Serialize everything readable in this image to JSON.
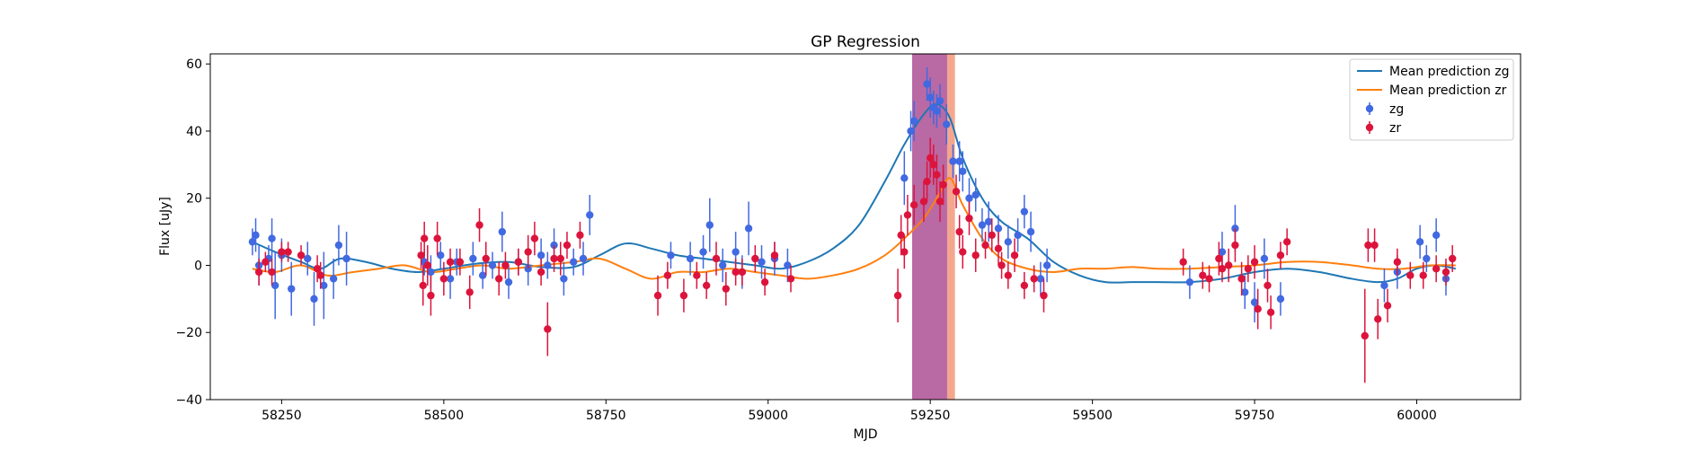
{
  "chart_data": {
    "type": "scatter",
    "title": "GP Regression",
    "xlabel": "MJD",
    "ylabel": "Flux [uJy]",
    "xlim": [
      58140,
      60160
    ],
    "ylim": [
      -40,
      63
    ],
    "xticks": [
      58250,
      58500,
      58750,
      59000,
      59250,
      59500,
      59750,
      60000
    ],
    "yticks": [
      -40,
      -20,
      0,
      20,
      40,
      60
    ],
    "legend_position": "top-right",
    "shaded_regions": [
      {
        "x_start": 59222,
        "x_end": 59276,
        "color": "#9b2a7e",
        "opacity": 0.7
      },
      {
        "x_start": 59276,
        "x_end": 59288,
        "color": "#f08060",
        "opacity": 0.7
      }
    ],
    "series": [
      {
        "name": "Mean prediction zg",
        "kind": "line",
        "color": "#1f77b4",
        "x": [
          58205,
          58240,
          58280,
          58310,
          58340,
          58380,
          58420,
          58460,
          58500,
          58550,
          58600,
          58650,
          58700,
          58740,
          58780,
          58820,
          58860,
          58900,
          58940,
          58980,
          59020,
          59060,
          59100,
          59140,
          59180,
          59210,
          59240,
          59260,
          59280,
          59300,
          59330,
          59360,
          59400,
          59440,
          59480,
          59520,
          59560,
          59600,
          59650,
          59700,
          59750,
          59800,
          59850,
          59900,
          59940,
          59970,
          60000,
          60030,
          60060
        ],
        "y": [
          7,
          4,
          1,
          -1,
          2,
          1,
          -1,
          -2,
          -1,
          0.5,
          1,
          -0.5,
          -0.5,
          3,
          6.5,
          5,
          3,
          2,
          1,
          0,
          -1,
          1,
          5,
          12,
          25,
          36,
          45,
          48,
          44,
          32,
          20,
          13,
          8,
          1,
          -3,
          -5,
          -5,
          -5,
          -5,
          -4,
          -2,
          -1,
          -2,
          -4,
          -5,
          -4,
          -1,
          0,
          -1
        ]
      },
      {
        "name": "Mean prediction zr",
        "kind": "line",
        "color": "#ff7f0e",
        "x": [
          58205,
          58240,
          58280,
          58320,
          58360,
          58400,
          58440,
          58480,
          58520,
          58560,
          58600,
          58650,
          58700,
          58740,
          58780,
          58820,
          58860,
          58900,
          58940,
          58980,
          59020,
          59060,
          59100,
          59140,
          59180,
          59210,
          59240,
          59260,
          59280,
          59300,
          59330,
          59360,
          59400,
          59440,
          59480,
          59520,
          59560,
          59600,
          59650,
          59700,
          59750,
          59800,
          59850,
          59900,
          59940,
          59980,
          60020,
          60060
        ],
        "y": [
          -1,
          -2,
          0,
          -3,
          -2,
          -1,
          0,
          -2,
          -1,
          0,
          -1,
          0,
          1,
          2,
          -1,
          -4,
          -2,
          -2,
          -1,
          -2,
          -3,
          -4,
          -3,
          -1,
          3,
          8,
          14,
          20,
          26,
          18,
          8,
          2,
          -1,
          -2,
          -1,
          -1,
          -0.5,
          -1,
          -1,
          -0.5,
          0,
          1,
          1,
          0,
          -1,
          -1,
          0,
          0
        ]
      },
      {
        "name": "zg",
        "kind": "errorbar",
        "color": "#4169e1",
        "points": [
          [
            58205,
            7,
            4
          ],
          [
            58210,
            9,
            5
          ],
          [
            58215,
            0,
            6
          ],
          [
            58230,
            2,
            4
          ],
          [
            58235,
            8,
            6
          ],
          [
            58240,
            -6,
            10
          ],
          [
            58250,
            3,
            5
          ],
          [
            58265,
            -7,
            8
          ],
          [
            58290,
            2,
            5
          ],
          [
            58300,
            -10,
            8
          ],
          [
            58315,
            -6,
            10
          ],
          [
            58330,
            -4,
            6
          ],
          [
            58338,
            6,
            6
          ],
          [
            58350,
            2,
            8
          ],
          [
            58470,
            1,
            4
          ],
          [
            58480,
            -2,
            5
          ],
          [
            58495,
            3,
            4
          ],
          [
            58510,
            -4,
            6
          ],
          [
            58520,
            1,
            4
          ],
          [
            58545,
            2,
            5
          ],
          [
            58560,
            -3,
            4
          ],
          [
            58575,
            0,
            4
          ],
          [
            58590,
            10,
            6
          ],
          [
            58600,
            -5,
            5
          ],
          [
            58615,
            1,
            4
          ],
          [
            58630,
            -1,
            5
          ],
          [
            58650,
            3,
            5
          ],
          [
            58660,
            0,
            4
          ],
          [
            58670,
            6,
            5
          ],
          [
            58685,
            -4,
            5
          ],
          [
            58700,
            1,
            4
          ],
          [
            58715,
            2,
            5
          ],
          [
            58725,
            15,
            6
          ],
          [
            58850,
            3,
            4
          ],
          [
            58880,
            2,
            5
          ],
          [
            58900,
            4,
            5
          ],
          [
            58910,
            12,
            8
          ],
          [
            58930,
            0,
            5
          ],
          [
            58950,
            4,
            6
          ],
          [
            58960,
            -2,
            5
          ],
          [
            58970,
            11,
            8
          ],
          [
            58990,
            1,
            5
          ],
          [
            59010,
            2,
            5
          ],
          [
            59030,
            0,
            5
          ],
          [
            59210,
            26,
            8
          ],
          [
            59220,
            40,
            6
          ],
          [
            59225,
            43,
            6
          ],
          [
            59245,
            54,
            5
          ],
          [
            59250,
            50,
            6
          ],
          [
            59255,
            47,
            5
          ],
          [
            59260,
            46,
            5
          ],
          [
            59265,
            49,
            5
          ],
          [
            59275,
            42,
            6
          ],
          [
            59285,
            31,
            5
          ],
          [
            59295,
            31,
            6
          ],
          [
            59300,
            28,
            6
          ],
          [
            59310,
            20,
            6
          ],
          [
            59320,
            21,
            5
          ],
          [
            59330,
            12,
            5
          ],
          [
            59340,
            13,
            6
          ],
          [
            59355,
            11,
            4
          ],
          [
            59370,
            7,
            5
          ],
          [
            59385,
            9,
            5
          ],
          [
            59395,
            16,
            5
          ],
          [
            59405,
            10,
            6
          ],
          [
            59420,
            -4,
            5
          ],
          [
            59430,
            0,
            5
          ],
          [
            59650,
            -5,
            5
          ],
          [
            59700,
            4,
            6
          ],
          [
            59720,
            11,
            7
          ],
          [
            59735,
            -8,
            5
          ],
          [
            59750,
            -11,
            6
          ],
          [
            59765,
            2,
            6
          ],
          [
            59790,
            -10,
            5
          ],
          [
            59950,
            -6,
            5
          ],
          [
            59970,
            -2,
            5
          ],
          [
            60005,
            7,
            5
          ],
          [
            60015,
            2,
            4
          ],
          [
            60030,
            9,
            5
          ],
          [
            60045,
            -4,
            5
          ]
        ]
      },
      {
        "name": "zr",
        "kind": "errorbar",
        "color": "#dc143c",
        "points": [
          [
            58215,
            -2,
            4
          ],
          [
            58225,
            1,
            3
          ],
          [
            58235,
            -2,
            4
          ],
          [
            58250,
            4,
            3
          ],
          [
            58260,
            4,
            3
          ],
          [
            58280,
            3,
            3
          ],
          [
            58305,
            -1,
            4
          ],
          [
            58310,
            -3,
            4
          ],
          [
            58465,
            3,
            4
          ],
          [
            58468,
            -6,
            6
          ],
          [
            58470,
            8,
            5
          ],
          [
            58475,
            0,
            6
          ],
          [
            58480,
            -9,
            6
          ],
          [
            58490,
            8,
            5
          ],
          [
            58500,
            -4,
            5
          ],
          [
            58510,
            1,
            4
          ],
          [
            58525,
            1,
            4
          ],
          [
            58540,
            -8,
            5
          ],
          [
            58555,
            12,
            5
          ],
          [
            58565,
            2,
            5
          ],
          [
            58585,
            -4,
            5
          ],
          [
            58595,
            0,
            4
          ],
          [
            58615,
            1,
            4
          ],
          [
            58630,
            4,
            5
          ],
          [
            58640,
            8,
            5
          ],
          [
            58650,
            -2,
            4
          ],
          [
            58660,
            -19,
            8
          ],
          [
            58670,
            2,
            4
          ],
          [
            58680,
            2,
            5
          ],
          [
            58690,
            6,
            4
          ],
          [
            58710,
            9,
            4
          ],
          [
            58830,
            -9,
            6
          ],
          [
            58845,
            -3,
            4
          ],
          [
            58870,
            -9,
            5
          ],
          [
            58890,
            -3,
            4
          ],
          [
            58905,
            -6,
            4
          ],
          [
            58920,
            2,
            5
          ],
          [
            58935,
            -7,
            5
          ],
          [
            58950,
            -2,
            4
          ],
          [
            58960,
            -2,
            4
          ],
          [
            58980,
            2,
            4
          ],
          [
            58995,
            -5,
            4
          ],
          [
            59010,
            3,
            4
          ],
          [
            59035,
            -4,
            4
          ],
          [
            59200,
            -9,
            8
          ],
          [
            59205,
            9,
            6
          ],
          [
            59210,
            4,
            5
          ],
          [
            59215,
            15,
            6
          ],
          [
            59225,
            18,
            6
          ],
          [
            59240,
            19,
            6
          ],
          [
            59245,
            25,
            6
          ],
          [
            59250,
            32,
            6
          ],
          [
            59255,
            30,
            6
          ],
          [
            59260,
            27,
            6
          ],
          [
            59265,
            19,
            6
          ],
          [
            59270,
            24,
            6
          ],
          [
            59290,
            22,
            5
          ],
          [
            59295,
            10,
            5
          ],
          [
            59300,
            4,
            5
          ],
          [
            59310,
            14,
            5
          ],
          [
            59320,
            3,
            5
          ],
          [
            59335,
            6,
            4
          ],
          [
            59345,
            9,
            5
          ],
          [
            59355,
            5,
            5
          ],
          [
            59360,
            0,
            4
          ],
          [
            59370,
            -3,
            4
          ],
          [
            59380,
            3,
            5
          ],
          [
            59395,
            -6,
            4
          ],
          [
            59410,
            -4,
            4
          ],
          [
            59425,
            -9,
            5
          ],
          [
            59640,
            1,
            4
          ],
          [
            59670,
            -3,
            4
          ],
          [
            59680,
            -4,
            4
          ],
          [
            59695,
            2,
            5
          ],
          [
            59700,
            -1,
            4
          ],
          [
            59710,
            0,
            5
          ],
          [
            59720,
            6,
            5
          ],
          [
            59730,
            -4,
            5
          ],
          [
            59740,
            -1,
            4
          ],
          [
            59750,
            1,
            5
          ],
          [
            59755,
            -13,
            6
          ],
          [
            59770,
            -6,
            5
          ],
          [
            59775,
            -14,
            5
          ],
          [
            59790,
            3,
            4
          ],
          [
            59800,
            7,
            4
          ],
          [
            59920,
            -21,
            14
          ],
          [
            59925,
            6,
            5
          ],
          [
            59935,
            6,
            5
          ],
          [
            59940,
            -16,
            6
          ],
          [
            59955,
            -12,
            5
          ],
          [
            59970,
            1,
            4
          ],
          [
            59990,
            -3,
            4
          ],
          [
            60010,
            -3,
            4
          ],
          [
            60030,
            -1,
            4
          ],
          [
            60045,
            -2,
            4
          ],
          [
            60055,
            2,
            4
          ]
        ]
      }
    ]
  }
}
